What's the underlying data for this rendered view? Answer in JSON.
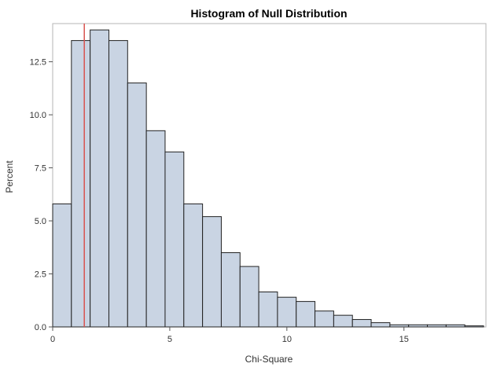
{
  "chart_data": {
    "type": "bar",
    "title": "Histogram of Null Distribution",
    "xlabel": "Chi-Square",
    "ylabel": "Percent",
    "xlim": [
      0,
      18.5
    ],
    "ylim": [
      0,
      14.3
    ],
    "xticks": [
      0,
      5,
      10,
      15
    ],
    "xtick_labels": [
      "0",
      "5",
      "10",
      "15"
    ],
    "yticks": [
      0,
      2.5,
      5,
      7.5,
      10,
      12.5
    ],
    "ytick_labels": [
      "0.0",
      "2.5",
      "5.0",
      "7.5",
      "10.0",
      "12.5"
    ],
    "bin_edges": [
      0,
      0.8,
      1.6,
      2.4,
      3.2,
      4.0,
      4.8,
      5.6,
      6.4,
      7.2,
      8.0,
      8.8,
      9.6,
      10.4,
      11.2,
      12.0,
      12.8,
      13.6,
      14.4,
      15.2,
      16.0,
      16.8,
      17.6,
      18.4
    ],
    "values": [
      5.8,
      13.5,
      14.0,
      13.5,
      11.5,
      9.25,
      8.25,
      5.8,
      5.2,
      3.5,
      2.85,
      1.65,
      1.4,
      1.2,
      0.75,
      0.55,
      0.35,
      0.2,
      0.1,
      0.1,
      0.1,
      0.1,
      0.05
    ],
    "reference_line": {
      "x": 1.35,
      "color": "#d9534f"
    },
    "bar_fill": "#c9d4e3",
    "bar_stroke": "#222222",
    "grid": false,
    "legend": "none"
  }
}
